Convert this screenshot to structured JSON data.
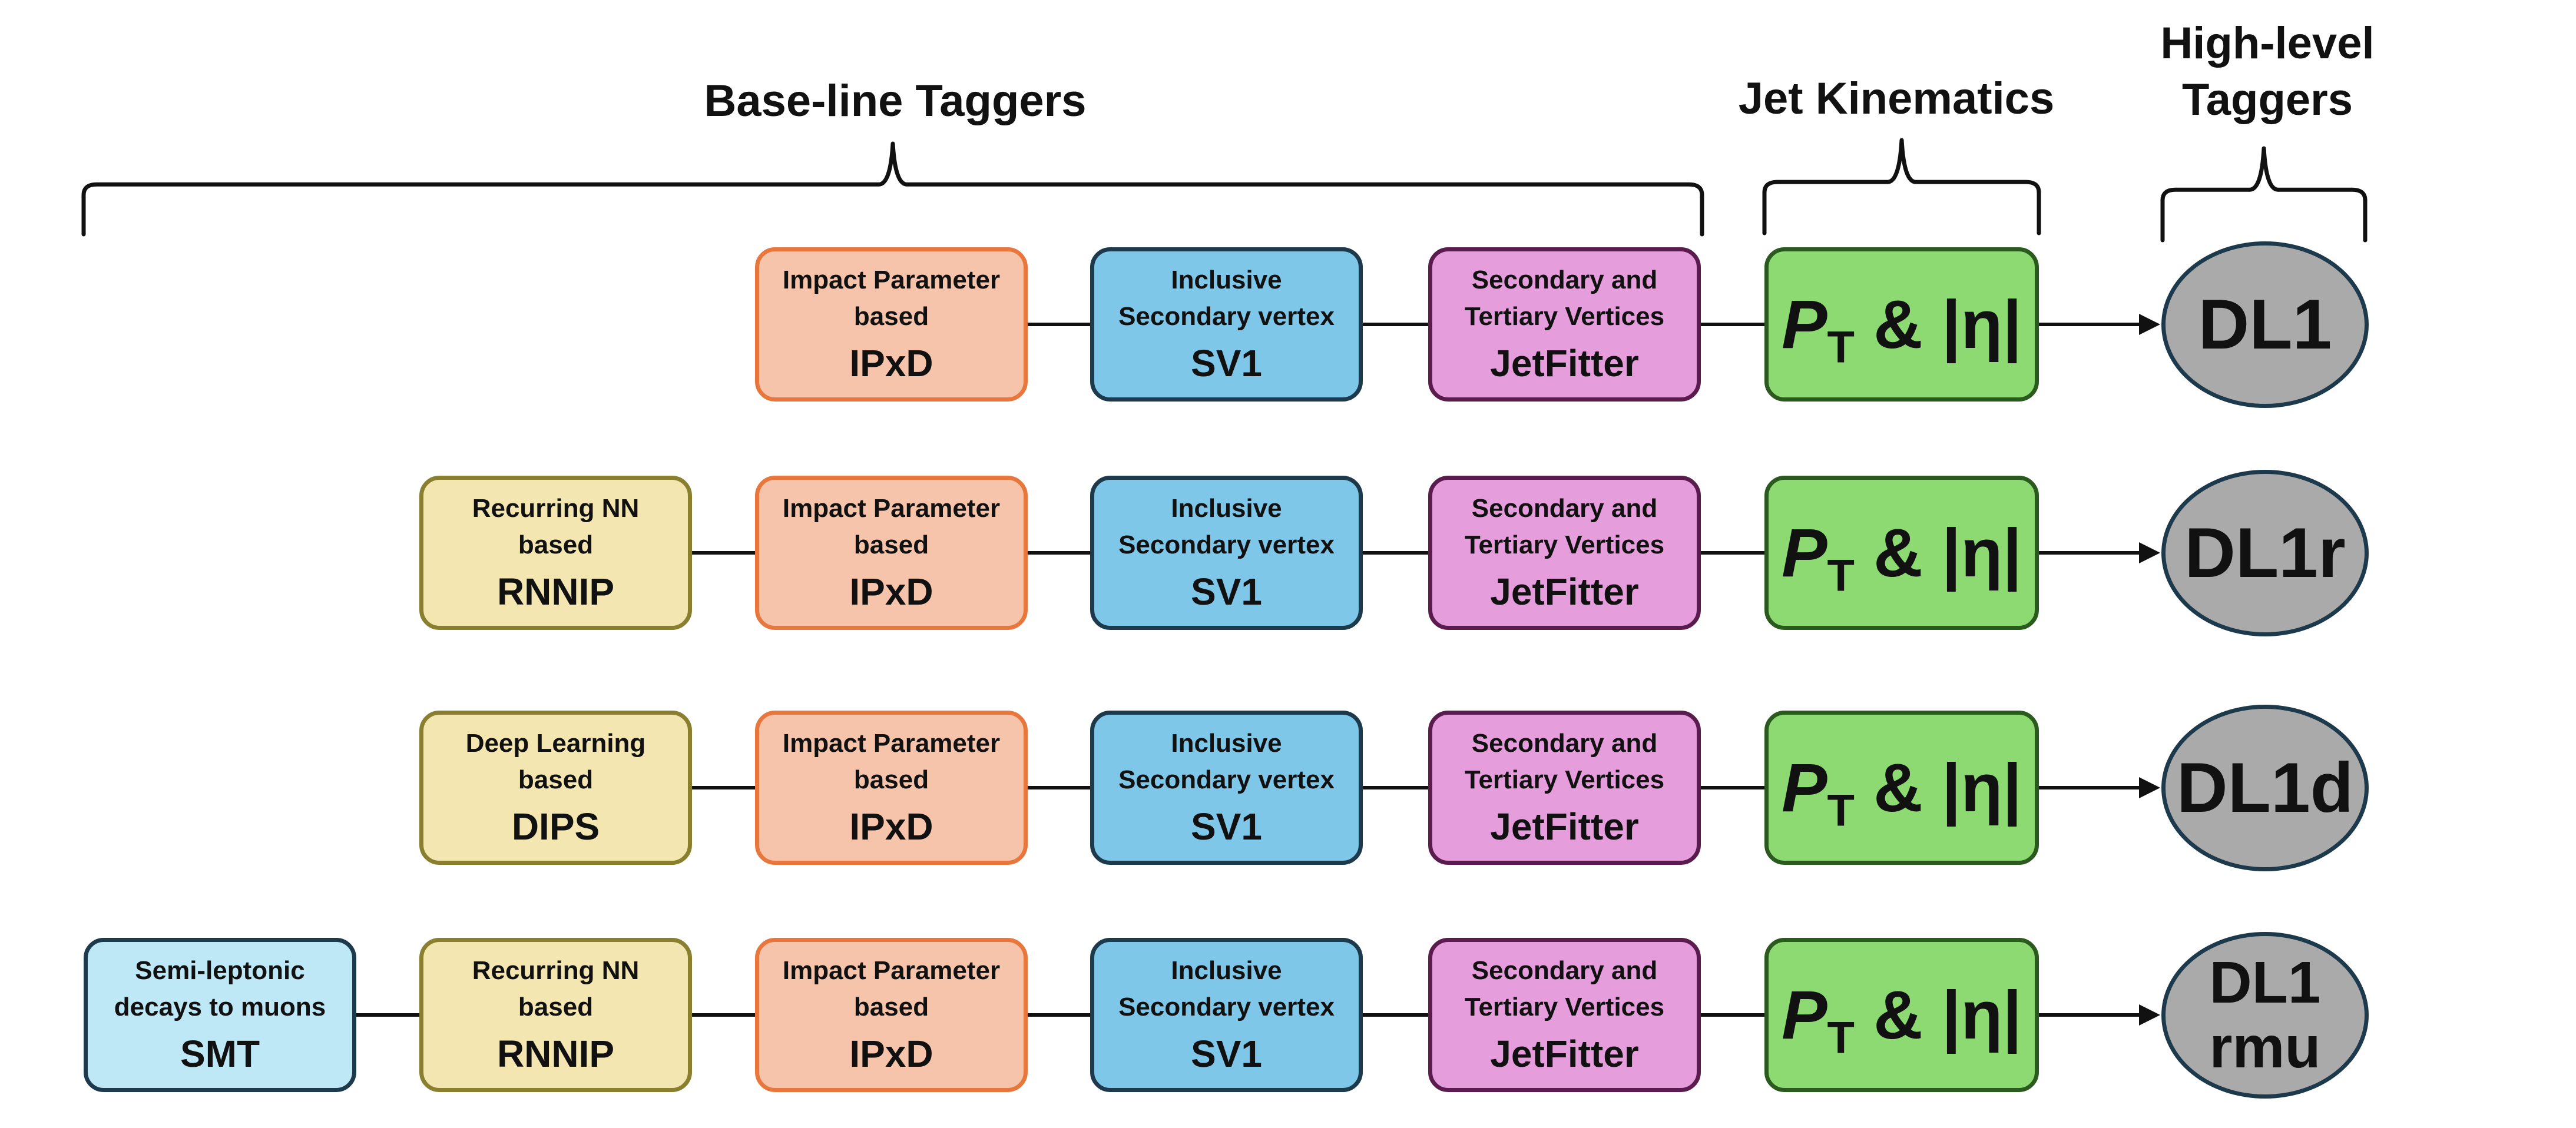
{
  "headings": {
    "baseline": "Base-line Taggers",
    "kinematics": "Jet Kinematics",
    "highlevel": "High-level\nTaggers"
  },
  "rows": [
    {
      "boxes": [
        {
          "type": "ip",
          "desc": "Impact Parameter\nbased",
          "name": "IPxD"
        },
        {
          "type": "sv",
          "desc": "Inclusive\nSecondary vertex",
          "name": "SV1"
        },
        {
          "type": "jf",
          "desc": "Secondary and\nTertiary Vertices",
          "name": "JetFitter"
        }
      ],
      "kinematics": {
        "pt": "P",
        "sub": "T",
        "rest": " & |η|"
      },
      "tagger": "DL1"
    },
    {
      "boxes": [
        {
          "type": "nn",
          "desc": "Recurring NN\nbased",
          "name": "RNNIP"
        },
        {
          "type": "ip",
          "desc": "Impact Parameter\nbased",
          "name": "IPxD"
        },
        {
          "type": "sv",
          "desc": "Inclusive\nSecondary vertex",
          "name": "SV1"
        },
        {
          "type": "jf",
          "desc": "Secondary and\nTertiary Vertices",
          "name": "JetFitter"
        }
      ],
      "kinematics": {
        "pt": "P",
        "sub": "T",
        "rest": " & |η|"
      },
      "tagger": "DL1r"
    },
    {
      "boxes": [
        {
          "type": "nn",
          "desc": "Deep Learning\nbased",
          "name": "DIPS"
        },
        {
          "type": "ip",
          "desc": "Impact Parameter\nbased",
          "name": "IPxD"
        },
        {
          "type": "sv",
          "desc": "Inclusive\nSecondary vertex",
          "name": "SV1"
        },
        {
          "type": "jf",
          "desc": "Secondary and\nTertiary Vertices",
          "name": "JetFitter"
        }
      ],
      "kinematics": {
        "pt": "P",
        "sub": "T",
        "rest": " & |η|"
      },
      "tagger": "DL1d"
    },
    {
      "boxes": [
        {
          "type": "smt",
          "desc": "Semi-leptonic\ndecays to muons",
          "name": "SMT"
        },
        {
          "type": "nn",
          "desc": "Recurring NN\nbased",
          "name": "RNNIP"
        },
        {
          "type": "ip",
          "desc": "Impact Parameter\nbased",
          "name": "IPxD"
        },
        {
          "type": "sv",
          "desc": "Inclusive\nSecondary vertex",
          "name": "SV1"
        },
        {
          "type": "jf",
          "desc": "Secondary and\nTertiary Vertices",
          "name": "JetFitter"
        }
      ],
      "kinematics": {
        "pt": "P",
        "sub": "T",
        "rest": " & |η|"
      },
      "tagger": "DL1\nrmu"
    }
  ],
  "colors": {
    "smt": "#bfe8f7",
    "nn": "#f3e6b0",
    "ip": "#f6c4aa",
    "sv": "#7fc7e8",
    "jf": "#e59ddb",
    "kinematics": "#8dd972",
    "tagger": "#aaaaaa"
  }
}
